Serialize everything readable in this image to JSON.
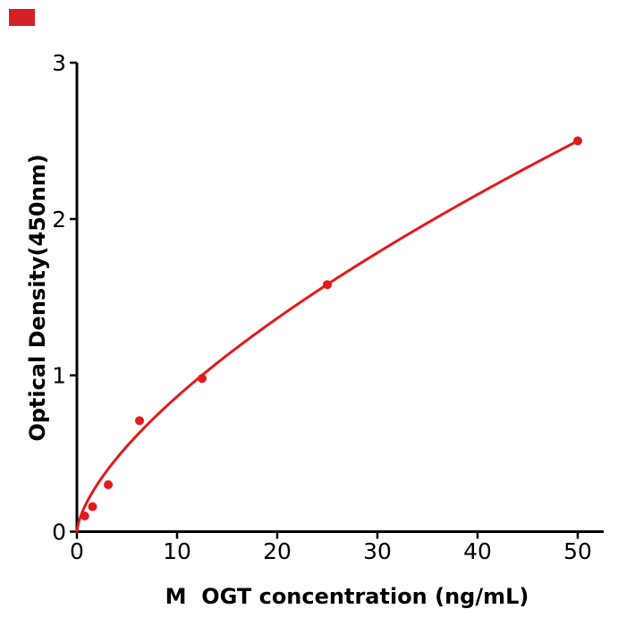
{
  "corner_marker": {
    "color": "#d32027"
  },
  "chart_data": {
    "type": "scatter",
    "title": "",
    "xlabel": "M  OGT concentration (ng/mL)",
    "ylabel": "Optical Density(450nm)",
    "x": [
      0.78,
      1.56,
      3.13,
      6.25,
      12.5,
      25,
      50
    ],
    "y": [
      0.1,
      0.16,
      0.3,
      0.71,
      0.98,
      1.58,
      2.5
    ],
    "xticks": [
      0,
      10,
      20,
      30,
      40,
      50
    ],
    "yticks": [
      0,
      1,
      2,
      3
    ],
    "xlim": [
      0,
      52.6
    ],
    "ylim": [
      0,
      3
    ],
    "grid": false,
    "legend": "none",
    "marker_color": "#e31a1c",
    "line_color": "#e31a1c",
    "axis_color": "#000000",
    "trendline": {
      "type": "power",
      "a": 0.189,
      "b": 0.66
    }
  }
}
